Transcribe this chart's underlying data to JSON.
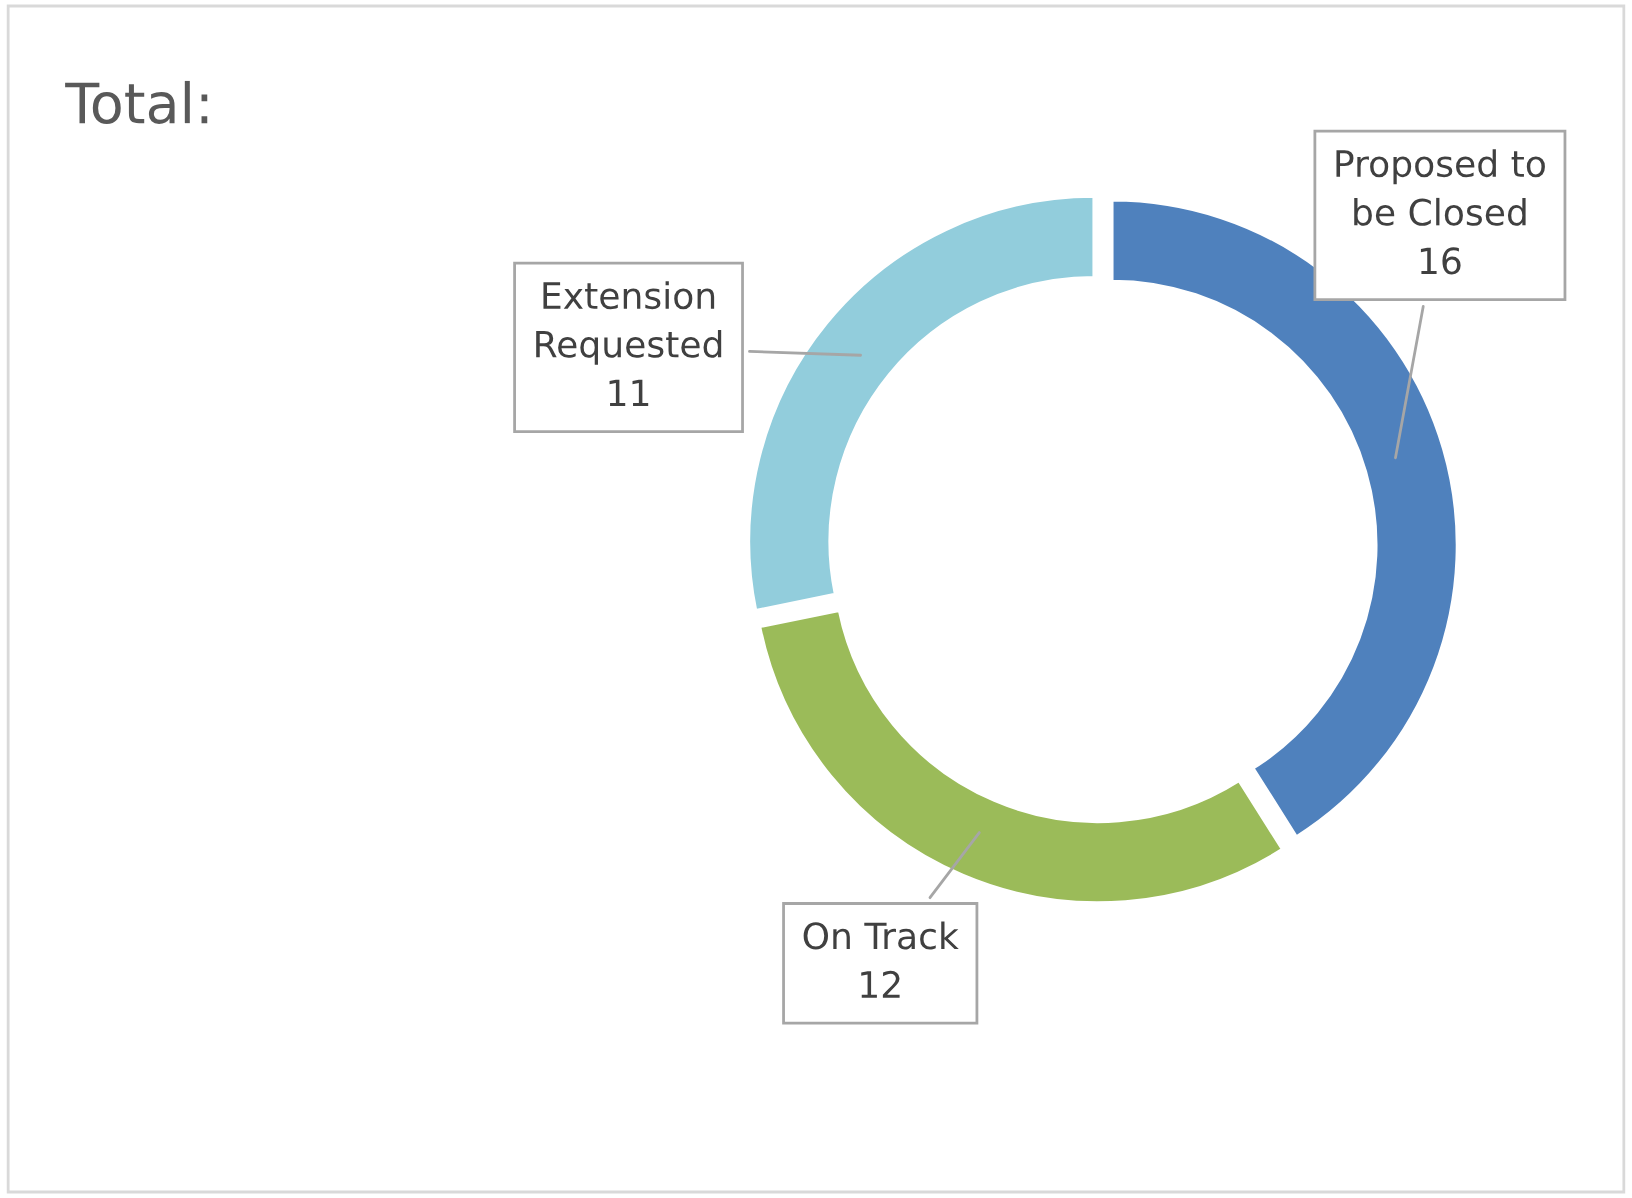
{
  "chart_data": {
    "type": "donut",
    "title": "Total:",
    "categories": [
      "Proposed to\nbe Closed",
      "On Track",
      "Extension\nRequested"
    ],
    "values": [
      16,
      12,
      11
    ],
    "colors": [
      "#4f81bd",
      "#9bbb59",
      "#92cddc"
    ],
    "data_labels": true
  }
}
